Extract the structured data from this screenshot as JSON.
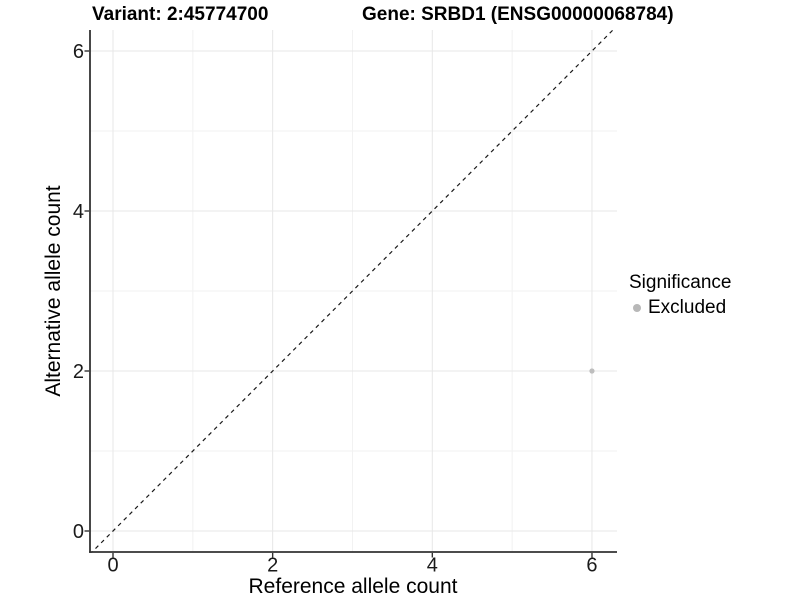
{
  "chart_data": {
    "type": "scatter",
    "title_variant": "Variant: 2:45774700",
    "title_gene": "Gene: SRBD1 (ENSG00000068784)",
    "xlabel": "Reference allele count",
    "ylabel": "Alternative allele count",
    "xlim": [
      -0.29,
      6.32
    ],
    "ylim": [
      -0.26,
      6.27
    ],
    "x_ticks": [
      0,
      2,
      4,
      6
    ],
    "y_ticks": [
      0,
      2,
      4,
      6
    ],
    "x_minor_ticks": [
      1,
      3,
      5
    ],
    "y_minor_ticks": [
      1,
      3,
      5
    ],
    "grid": "major+minor",
    "identity_line": {
      "type": "abline",
      "slope": 1,
      "intercept": 0,
      "style": "dashed",
      "color": "#1a1a1a"
    },
    "series": [
      {
        "name": "Excluded",
        "color": "#bebebe",
        "points": [
          {
            "x": 6,
            "y": 2
          }
        ]
      }
    ],
    "legend": {
      "title": "Significance",
      "position": "right",
      "entries": [
        {
          "label": "Excluded",
          "color": "#b8b8b8",
          "marker": "circle"
        }
      ]
    },
    "colors": {
      "background": "#ffffff",
      "axis": "#333333",
      "text": "#1a1a1a",
      "grid_major": "#e7e7e7",
      "grid_minor": "#f2f2f2"
    }
  }
}
